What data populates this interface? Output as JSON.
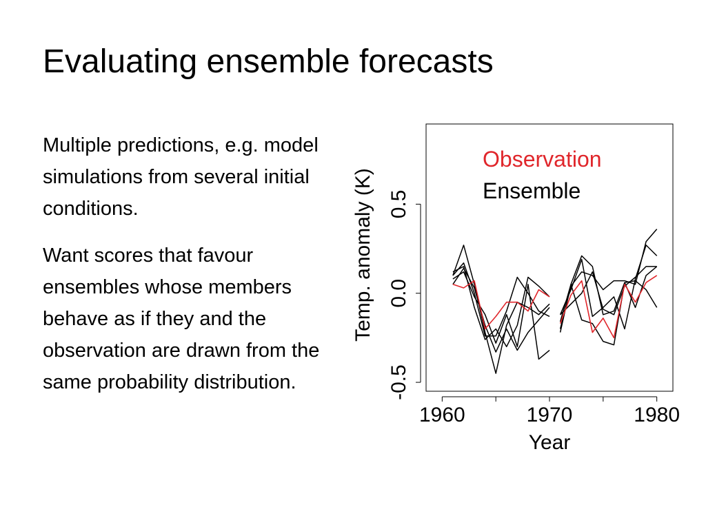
{
  "slide": {
    "title": "Evaluating ensemble forecasts",
    "paragraphs": [
      "Multiple predictions, e.g. model simulations from several initial conditions.",
      "Want scores that favour ensembles whose members behave as if they and the observation are drawn from the same probability distribution."
    ]
  },
  "chart_data": {
    "type": "line",
    "xlabel": "Year",
    "ylabel": "Temp. anomaly (K)",
    "xlim": [
      1958.5,
      1981.5
    ],
    "ylim": [
      -0.55,
      0.95
    ],
    "xticks": [
      1960,
      1965,
      1970,
      1975,
      1980
    ],
    "xtick_labels": [
      "1960",
      "",
      "1970",
      "",
      "1980"
    ],
    "yticks": [
      -0.5,
      0.0,
      0.5
    ],
    "ytick_labels": [
      "-0.5",
      "0.0",
      "0.5"
    ],
    "legend": {
      "position": "top-right",
      "entries": [
        {
          "label": "Observation",
          "color": "#e0262b"
        },
        {
          "label": "Ensemble",
          "color": "#000000"
        }
      ]
    },
    "segments": [
      [
        1961,
        1970
      ],
      [
        1971,
        1980
      ]
    ],
    "series": [
      {
        "name": "Observation",
        "color": "#e0262b",
        "values": [
          0.05,
          0.03,
          0.07,
          -0.2,
          -0.13,
          -0.05,
          -0.05,
          -0.1,
          0.02,
          -0.02,
          -0.17,
          -0.01,
          0.07,
          -0.22,
          -0.14,
          -0.25,
          0.05,
          -0.05,
          0.06,
          0.1
        ]
      },
      {
        "color": "#000000",
        "values": [
          0.1,
          0.27,
          0.05,
          -0.22,
          -0.45,
          -0.18,
          -0.05,
          -0.08,
          -0.12,
          -0.06,
          -0.2,
          0.04,
          0.12,
          0.1,
          0.02,
          0.07,
          0.07,
          0.05,
          0.29,
          0.36
        ]
      },
      {
        "color": "#000000",
        "values": [
          0.12,
          0.15,
          -0.08,
          -0.26,
          -0.2,
          -0.3,
          -0.18,
          0.09,
          0.04,
          -0.02,
          -0.12,
          0.02,
          0.19,
          -0.13,
          -0.08,
          -0.02,
          -0.2,
          0.08,
          0.27,
          0.21
        ]
      },
      {
        "color": "#000000",
        "values": [
          0.05,
          0.14,
          0.03,
          -0.18,
          -0.33,
          -0.2,
          -0.32,
          -0.22,
          -0.15,
          -0.08,
          -0.22,
          0.05,
          -0.15,
          -0.17,
          -0.27,
          -0.29,
          0.06,
          -0.08,
          0.1,
          0.15
        ]
      },
      {
        "color": "#000000",
        "values": [
          0.08,
          0.12,
          -0.02,
          -0.12,
          -0.28,
          -0.12,
          -0.3,
          0.05,
          -0.37,
          -0.32,
          -0.16,
          0.05,
          0.21,
          0.15,
          -0.12,
          -0.1,
          0.06,
          0.07,
          0.02,
          -0.08
        ]
      },
      {
        "color": "#000000",
        "values": [
          0.1,
          0.17,
          0.0,
          -0.24,
          -0.24,
          -0.1,
          0.09,
          0.0,
          -0.1,
          -0.13,
          -0.12,
          -0.06,
          0.0,
          0.12,
          -0.09,
          -0.12,
          0.04,
          0.09,
          0.15,
          0.15
        ]
      }
    ]
  }
}
